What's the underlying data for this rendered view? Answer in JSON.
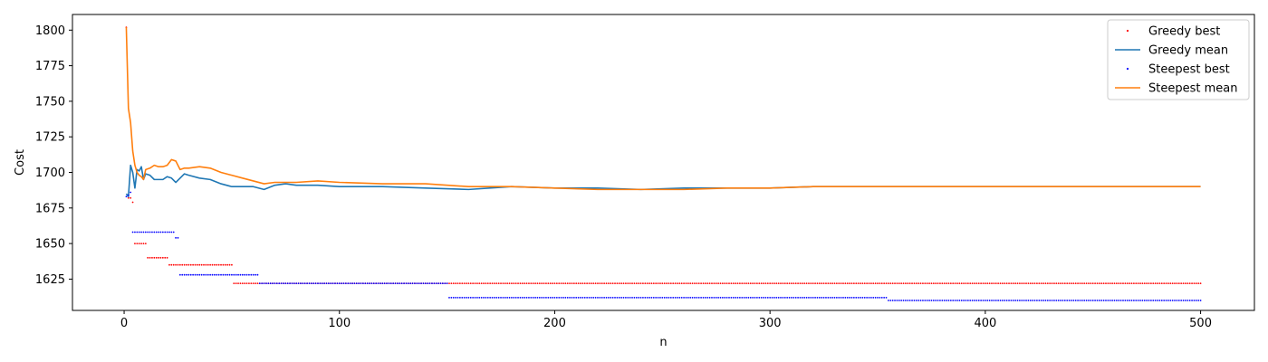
{
  "chart_data": {
    "type": "line",
    "title": "",
    "xlabel": "n",
    "ylabel": "Cost",
    "xlim": [
      -24,
      525
    ],
    "ylim": [
      1603,
      1811
    ],
    "xticks": [
      0,
      100,
      200,
      300,
      400,
      500
    ],
    "yticks": [
      1625,
      1650,
      1675,
      1700,
      1725,
      1750,
      1775,
      1800
    ],
    "grid": false,
    "legend_position": "top-right",
    "series": [
      {
        "name": "Greedy best",
        "kind": "points",
        "color": "#ff0000",
        "steps": [
          [
            1,
            1,
            1802
          ],
          [
            2,
            2,
            1682
          ],
          [
            3,
            3,
            1682
          ],
          [
            4,
            4,
            1679
          ],
          [
            5,
            10,
            1650
          ],
          [
            11,
            20,
            1640
          ],
          [
            21,
            50,
            1635
          ],
          [
            51,
            500,
            1622
          ]
        ]
      },
      {
        "name": "Greedy mean",
        "kind": "line",
        "color": "#1f77b4",
        "x": [
          1,
          2,
          3,
          4,
          5,
          6,
          7,
          8,
          9,
          10,
          12,
          14,
          16,
          18,
          20,
          22,
          24,
          26,
          28,
          30,
          35,
          40,
          45,
          50,
          55,
          60,
          65,
          70,
          75,
          80,
          90,
          100,
          120,
          140,
          160,
          180,
          200,
          220,
          240,
          260,
          280,
          300,
          320,
          340,
          360,
          380,
          400,
          420,
          440,
          460,
          480,
          500
        ],
        "y": [
          1685,
          1683,
          1705,
          1700,
          1689,
          1702,
          1701,
          1704,
          1695,
          1699,
          1698,
          1695,
          1695,
          1695,
          1697,
          1696,
          1693,
          1696,
          1699,
          1698,
          1696,
          1695,
          1692,
          1690,
          1690,
          1690,
          1688,
          1691,
          1692,
          1691,
          1691,
          1690,
          1690,
          1689,
          1688,
          1690,
          1689,
          1689,
          1688,
          1689,
          1689,
          1689,
          1690,
          1690,
          1690,
          1690,
          1690,
          1690,
          1690,
          1690,
          1690,
          1690
        ]
      },
      {
        "name": "Steepest best",
        "kind": "points",
        "color": "#0000ff",
        "steps": [
          [
            1,
            1,
            1683
          ],
          [
            2,
            2,
            1684
          ],
          [
            3,
            3,
            1686
          ],
          [
            4,
            23,
            1658
          ],
          [
            24,
            24,
            1654
          ],
          [
            25,
            25,
            1654
          ],
          [
            26,
            62,
            1628
          ],
          [
            63,
            150,
            1622
          ],
          [
            151,
            354,
            1612
          ],
          [
            355,
            500,
            1610
          ]
        ]
      },
      {
        "name": "Steepest mean",
        "kind": "line",
        "color": "#ff7f0e",
        "x": [
          1,
          2,
          3,
          4,
          5,
          6,
          7,
          8,
          9,
          10,
          12,
          14,
          16,
          18,
          20,
          22,
          24,
          26,
          28,
          30,
          35,
          40,
          45,
          50,
          55,
          60,
          65,
          70,
          75,
          80,
          90,
          100,
          120,
          140,
          160,
          180,
          200,
          220,
          240,
          260,
          280,
          300,
          320,
          340,
          360,
          380,
          400,
          420,
          440,
          460,
          480,
          500
        ],
        "y": [
          1802,
          1745,
          1735,
          1715,
          1705,
          1700,
          1698,
          1697,
          1695,
          1702,
          1703,
          1705,
          1704,
          1704,
          1705,
          1709,
          1708,
          1702,
          1703,
          1703,
          1704,
          1703,
          1700,
          1698,
          1696,
          1694,
          1692,
          1693,
          1693,
          1693,
          1694,
          1693,
          1692,
          1692,
          1690,
          1690,
          1689,
          1688,
          1688,
          1688,
          1689,
          1689,
          1690,
          1690,
          1690,
          1690,
          1690,
          1690,
          1690,
          1690,
          1690,
          1690
        ]
      }
    ]
  }
}
